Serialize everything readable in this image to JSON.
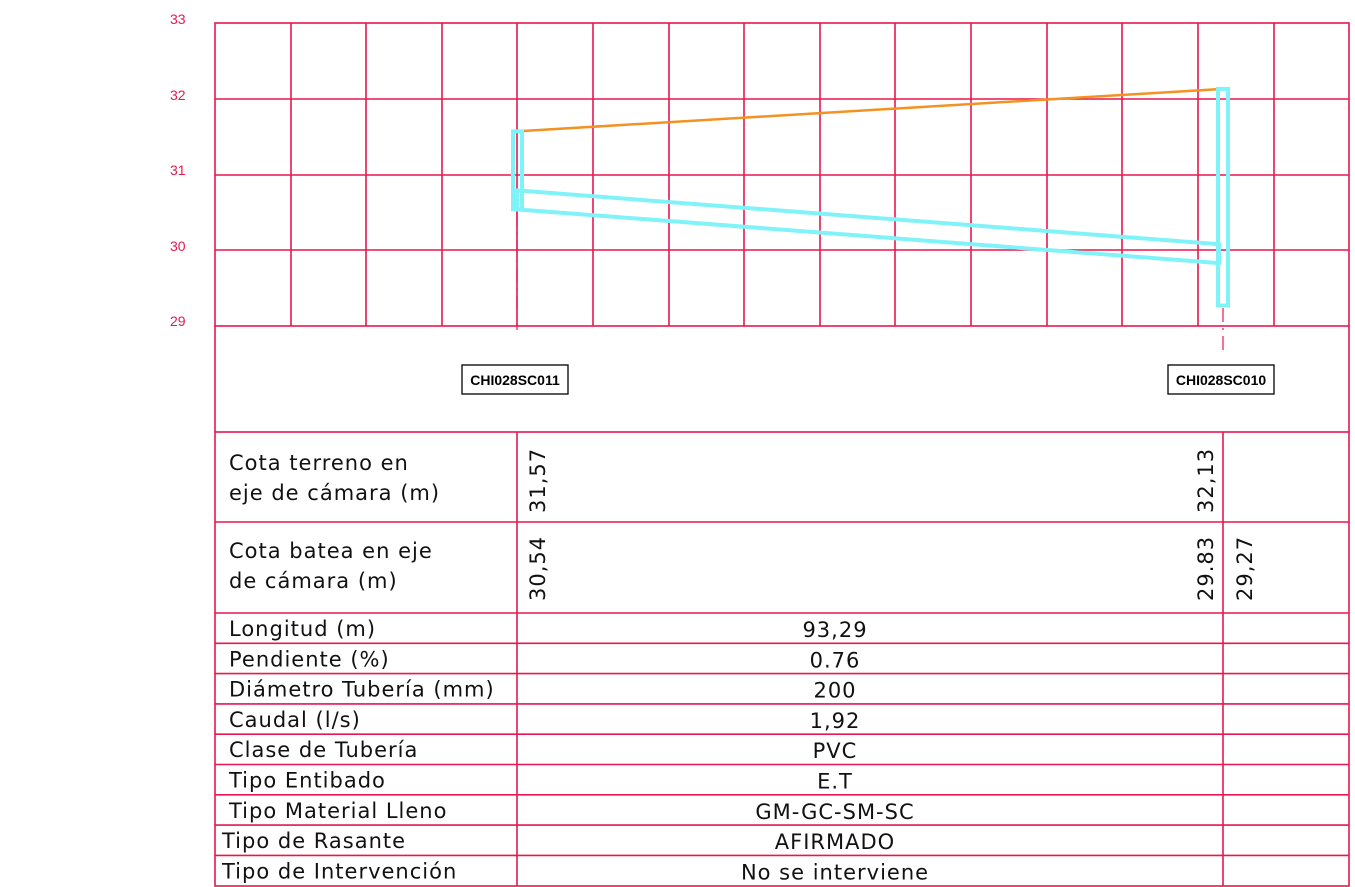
{
  "axis": {
    "y_ticks": [
      "33",
      "32",
      "31",
      "30",
      "29"
    ]
  },
  "chambers": [
    {
      "id": "CHI028SC011",
      "cota_terreno": "31,57",
      "cota_batea": "30,54"
    },
    {
      "id": "CHI028SC010",
      "cota_terreno": "32,13",
      "cota_batea_entrada": "29.83",
      "cota_batea_salida": "29,27"
    }
  ],
  "rows": {
    "cota_terreno": {
      "label_line1": "Cota terreno en",
      "label_line2": "eje de cámara (m)"
    },
    "cota_batea": {
      "label_line1": "Cota batea en eje",
      "label_line2": "de cámara (m)"
    }
  },
  "properties": [
    {
      "label": "Longitud (m)",
      "value": "93,29"
    },
    {
      "label": "Pendiente (%)",
      "value": "0.76"
    },
    {
      "label": "Diámetro Tubería (mm)",
      "value": "200"
    },
    {
      "label": "Caudal (l/s)",
      "value": "1,92"
    },
    {
      "label": "Clase de Tubería",
      "value": "PVC"
    },
    {
      "label": "Tipo Entibado",
      "value": "E.T"
    },
    {
      "label": "Tipo Material Lleno",
      "value": "GM-GC-SM-SC"
    },
    {
      "label": "Tipo de Rasante",
      "value": "AFIRMADO"
    },
    {
      "label": "Tipo de Intervención",
      "value": "No se interviene"
    }
  ],
  "profile": {
    "ground": {
      "start": 31.57,
      "end": 32.13
    },
    "pipe_invert": {
      "start": 30.54,
      "end": 29.83
    },
    "chamber_bottom": {
      "start": 30.54,
      "end": 29.27
    },
    "colors": {
      "ground": "#f39221",
      "pipe": "#7ff3f7",
      "grid": "#e8174f"
    }
  }
}
